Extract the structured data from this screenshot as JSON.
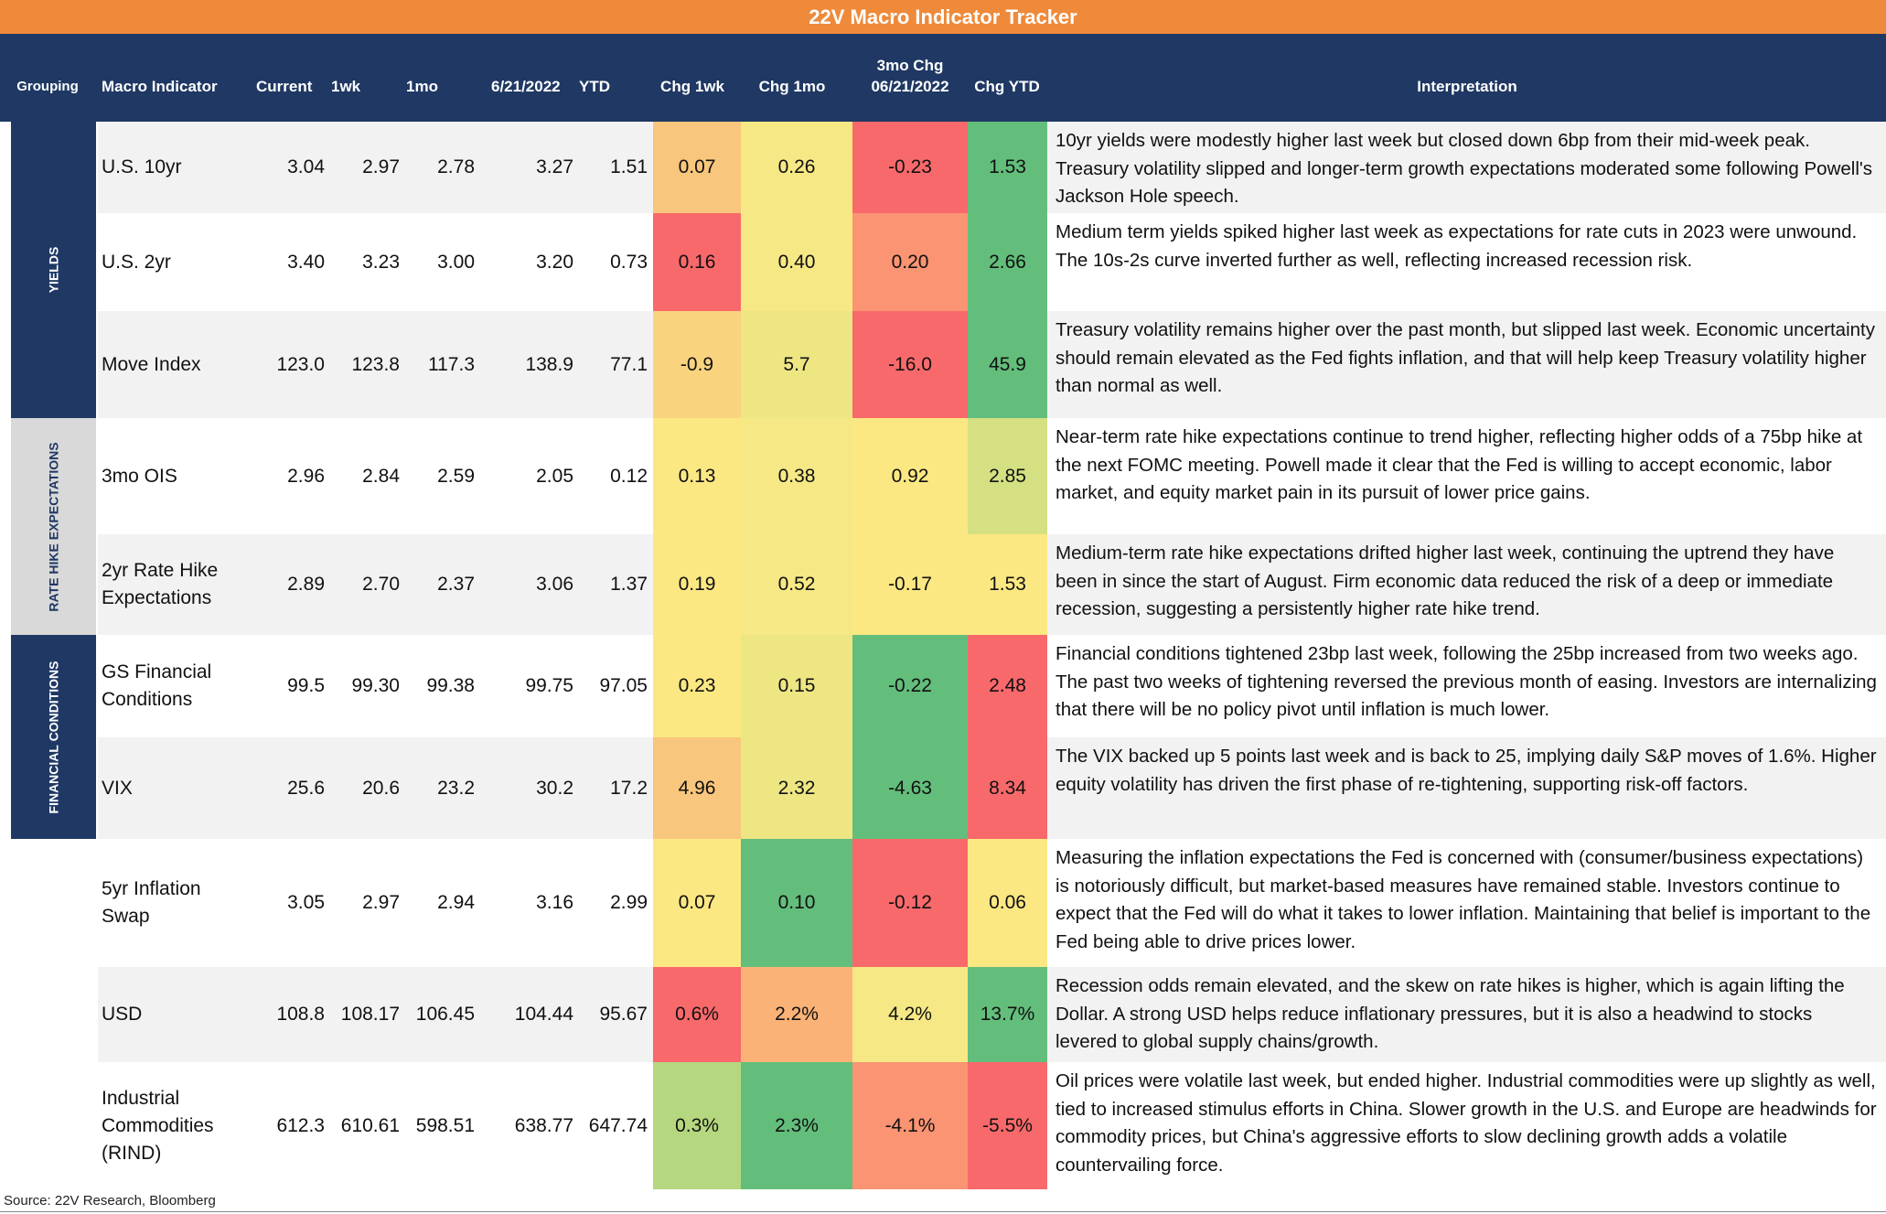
{
  "title": "22V Macro Indicator Tracker",
  "headers": {
    "grouping": "Grouping",
    "indicator": "Macro Indicator",
    "current": "Current",
    "wk1": "1wk",
    "mo1": "1mo",
    "date": "6/21/2022",
    "ytd": "YTD",
    "chg1wk": "Chg 1wk",
    "chg1mo": "Chg 1mo",
    "chg3mo_line1": "3mo Chg",
    "chg3mo_line2": "06/21/2022",
    "chgytd": "Chg YTD",
    "interp": "Interpretation"
  },
  "groups": [
    {
      "label": "YIELDS",
      "color": "#1f3864",
      "text_color": "#ffffff"
    },
    {
      "label": "RATE HIKE EXPECTATIONS",
      "color": "#d9d9d9",
      "text_color": "#1f3864"
    },
    {
      "label": "FINANCIAL CONDITIONS",
      "color": "#1f3864",
      "text_color": "#ffffff"
    }
  ],
  "rows": [
    {
      "indicator": "U.S. 10yr",
      "current": "3.04",
      "wk1": "2.97",
      "mo1": "2.78",
      "date": "3.27",
      "ytd": "1.51",
      "chg1wk": "0.07",
      "chg1mo": "0.26",
      "chg3mo": "-0.23",
      "chgytd": "1.53",
      "colors": [
        "#f8c67c",
        "#f6e985",
        "#f8696b",
        "#63be7b"
      ],
      "shaded": true,
      "interp": "10yr yields were modestly higher last week but closed down 6bp from their mid-week peak. Treasury volatility slipped and longer-term growth expectations moderated some following Powell's Jackson Hole speech."
    },
    {
      "indicator": "U.S. 2yr",
      "current": "3.40",
      "wk1": "3.23",
      "mo1": "3.00",
      "date": "3.20",
      "ytd": "0.73",
      "chg1wk": "0.16",
      "chg1mo": "0.40",
      "chg3mo": "0.20",
      "chgytd": "2.66",
      "colors": [
        "#f8696b",
        "#f6e985",
        "#fa9473",
        "#63be7b"
      ],
      "shaded": false,
      "interp": "Medium term yields spiked higher last week as expectations for rate cuts in 2023 were unwound. The 10s-2s curve inverted further as well, reflecting increased recession risk."
    },
    {
      "indicator": "Move Index",
      "current": "123.0",
      "wk1": "123.8",
      "mo1": "117.3",
      "date": "138.9",
      "ytd": "77.1",
      "chg1wk": "-0.9",
      "chg1mo": "5.7",
      "chg3mo": "-16.0",
      "chgytd": "45.9",
      "colors": [
        "#fad37f",
        "#ede683",
        "#f8696b",
        "#63be7b"
      ],
      "shaded": true,
      "interp": "Treasury volatility remains higher over the past month, but slipped last week. Economic uncertainty should remain elevated as the Fed fights inflation, and that will help keep Treasury volatility higher than normal as well."
    },
    {
      "indicator": "3mo OIS",
      "current": "2.96",
      "wk1": "2.84",
      "mo1": "2.59",
      "date": "2.05",
      "ytd": "0.12",
      "chg1wk": "0.13",
      "chg1mo": "0.38",
      "chg3mo": "0.92",
      "chgytd": "2.85",
      "colors": [
        "#fce883",
        "#f6e985",
        "#fce883",
        "#d5e082"
      ],
      "shaded": false,
      "interp": "Near-term rate hike expectations continue to trend higher, reflecting higher odds of a 75bp hike at the next FOMC meeting. Powell made it clear that the Fed is willing to accept economic, labor market, and equity market pain in its pursuit of lower price gains."
    },
    {
      "indicator": "2yr Rate Hike Expectations",
      "current": "2.89",
      "wk1": "2.70",
      "mo1": "2.37",
      "date": "3.06",
      "ytd": "1.37",
      "chg1wk": "0.19",
      "chg1mo": "0.52",
      "chg3mo": "-0.17",
      "chgytd": "1.53",
      "colors": [
        "#fce883",
        "#f6e985",
        "#fce883",
        "#fce883"
      ],
      "shaded": true,
      "interp": "Medium-term rate hike expectations drifted higher last week, continuing the uptrend they have been in since the start of August. Firm economic data reduced the risk of a deep or immediate recession, suggesting a persistently higher rate hike trend."
    },
    {
      "indicator": "GS Financial Conditions",
      "current": "99.5",
      "wk1": "99.30",
      "mo1": "99.38",
      "date": "99.75",
      "ytd": "97.05",
      "chg1wk": "0.23",
      "chg1mo": "0.15",
      "chg3mo": "-0.22",
      "chgytd": "2.48",
      "colors": [
        "#fce883",
        "#ede683",
        "#63be7b",
        "#f8696b"
      ],
      "shaded": false,
      "interp": "Financial conditions tightened 23bp last week, following the 25bp increased from two weeks ago. The past two weeks of tightening reversed the previous month of easing. Investors are internalizing that there will be no policy pivot until inflation is much lower."
    },
    {
      "indicator": "VIX",
      "current": "25.6",
      "wk1": "20.6",
      "mo1": "23.2",
      "date": "30.2",
      "ytd": "17.2",
      "chg1wk": "4.96",
      "chg1mo": "2.32",
      "chg3mo": "-4.63",
      "chgytd": "8.34",
      "colors": [
        "#f8c67c",
        "#ede683",
        "#63be7b",
        "#f8696b"
      ],
      "shaded": true,
      "interp": "The VIX backed up 5 points last week and is back to 25, implying daily S&P moves of 1.6%. Higher equity volatility has driven the first phase of re-tightening, supporting risk-off factors."
    },
    {
      "indicator": "5yr Inflation Swap",
      "current": "3.05",
      "wk1": "2.97",
      "mo1": "2.94",
      "date": "3.16",
      "ytd": "2.99",
      "chg1wk": "0.07",
      "chg1mo": "0.10",
      "chg3mo": "-0.12",
      "chgytd": "0.06",
      "colors": [
        "#fce883",
        "#63be7b",
        "#f8696b",
        "#fce883"
      ],
      "shaded": false,
      "interp": "Measuring the inflation expectations the Fed is concerned with (consumer/business expectations) is notoriously difficult, but market-based measures have remained stable. Investors continue to expect that the Fed will do what it takes to lower inflation. Maintaining that belief is important to the Fed being able to drive prices lower."
    },
    {
      "indicator": "USD",
      "current": "108.8",
      "wk1": "108.17",
      "mo1": "106.45",
      "date": "104.44",
      "ytd": "95.67",
      "chg1wk": "0.6%",
      "chg1mo": "2.2%",
      "chg3mo": "4.2%",
      "chgytd": "13.7%",
      "colors": [
        "#f8696b",
        "#fbb277",
        "#f6e985",
        "#63be7b"
      ],
      "shaded": true,
      "interp": "Recession odds remain elevated, and the skew on rate hikes is higher, which is again lifting the Dollar. A strong USD helps reduce inflationary pressures, but it is also a headwind to stocks levered to global supply chains/growth."
    },
    {
      "indicator": "Industrial Commodities (RIND)",
      "current": "612.3",
      "wk1": "610.61",
      "mo1": "598.51",
      "date": "638.77",
      "ytd": "647.74",
      "chg1wk": "0.3%",
      "chg1mo": "2.3%",
      "chg3mo": "-4.1%",
      "chgytd": "-5.5%",
      "colors": [
        "#b5d77f",
        "#63be7b",
        "#fa9473",
        "#f8696b"
      ],
      "shaded": false,
      "interp": "Oil prices were volatile last week, but ended higher. Industrial commodities were up slightly as well, tied to increased stimulus efforts in China. Slower growth in the U.S. and Europe are headwinds for commodity prices, but  China's aggressive efforts to slow declining growth adds a volatile countervailing force."
    }
  ],
  "source": "Source: 22V Research, Bloomberg"
}
